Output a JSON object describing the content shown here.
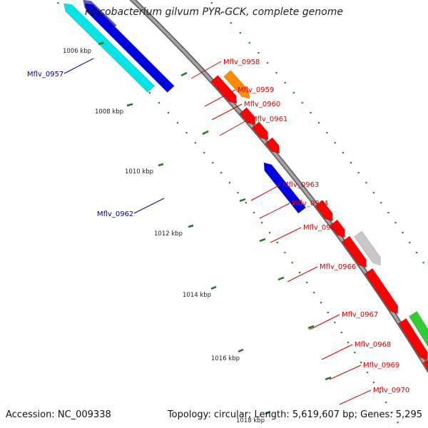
{
  "title": "Mycobacterium gilvum PYR-GCK, complete genome",
  "accession": "Accession: NC_009338",
  "summary": "Topology: circular; Length: 5,619,607 bp; Genes: 5,295",
  "colors": {
    "backbone": "#8c8c8c",
    "tick": "#1c7a1c",
    "reverse_label": "#00009c",
    "forward_label": "#d40000"
  },
  "ticks": [
    "1006 kbp",
    "1008 kbp",
    "1010 kbp",
    "1012 kbp",
    "1014 kbp",
    "1016 kbp",
    "1018 kbp"
  ],
  "labels": [
    {
      "text": "Mflv_0957",
      "strand": "reverse"
    },
    {
      "text": "Mflv_0958",
      "strand": "forward"
    },
    {
      "text": "Mflv_0959",
      "strand": "forward"
    },
    {
      "text": "Mflv_0960",
      "strand": "forward"
    },
    {
      "text": "Mflv_0961",
      "strand": "forward"
    },
    {
      "text": "Mflv_0962",
      "strand": "reverse"
    },
    {
      "text": "Mflv_0963",
      "strand": "forward"
    },
    {
      "text": "Mflv_0964",
      "strand": "forward"
    },
    {
      "text": "Mflv_0965",
      "strand": "forward"
    },
    {
      "text": "Mflv_0966",
      "strand": "forward"
    },
    {
      "text": "Mflv_0967",
      "strand": "forward"
    },
    {
      "text": "Mflv_0968",
      "strand": "forward"
    },
    {
      "text": "Mflv_0969",
      "strand": "forward"
    },
    {
      "text": "Mflv_0970",
      "strand": "forward"
    }
  ]
}
